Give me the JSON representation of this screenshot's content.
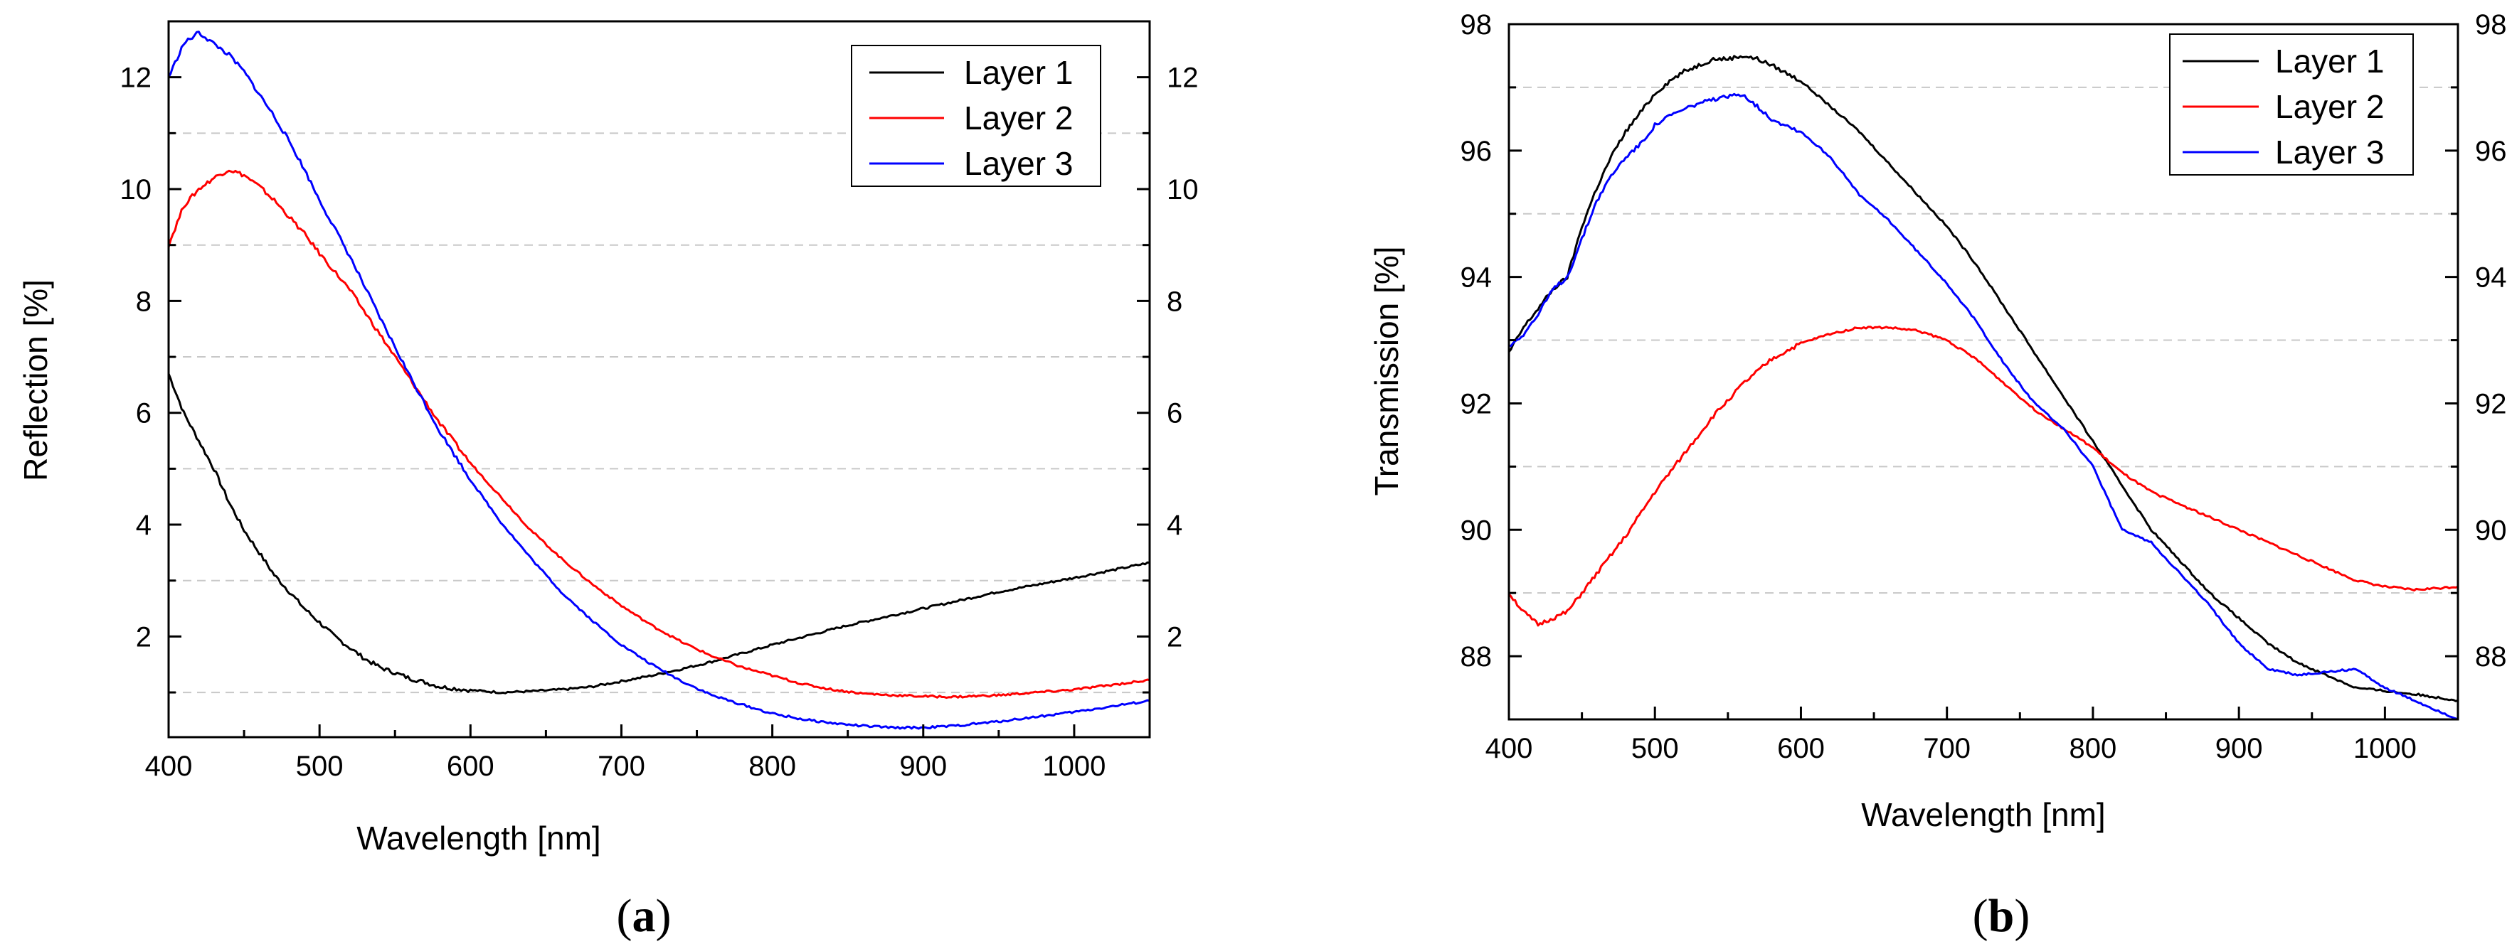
{
  "chart_data": [
    {
      "type": "line",
      "panel_label": "a",
      "xlabel": "Wavelength [nm]",
      "ylabel": "Reflection [%]",
      "xlim": [
        400,
        1050
      ],
      "ylim": [
        0.2,
        13
      ],
      "xticks": [
        400,
        500,
        600,
        700,
        800,
        900,
        1000
      ],
      "yticks": [
        2,
        4,
        6,
        8,
        10,
        12
      ],
      "grid_y": [
        1,
        3,
        5,
        7,
        9,
        11
      ],
      "right_axis_mirrored": true,
      "legend_position": "top-right",
      "series": [
        {
          "name": "Layer 1",
          "color": "#000000",
          "x": [
            400,
            410,
            420,
            430,
            440,
            450,
            460,
            470,
            480,
            490,
            500,
            510,
            520,
            530,
            540,
            550,
            560,
            570,
            580,
            600,
            620,
            640,
            660,
            680,
            700,
            720,
            740,
            760,
            780,
            800,
            850,
            900,
            950,
            1000,
            1050
          ],
          "y": [
            6.7,
            6.0,
            5.5,
            5.0,
            4.4,
            3.9,
            3.5,
            3.1,
            2.8,
            2.5,
            2.25,
            2.0,
            1.8,
            1.6,
            1.45,
            1.35,
            1.25,
            1.18,
            1.1,
            1.04,
            1.0,
            1.02,
            1.05,
            1.1,
            1.2,
            1.3,
            1.42,
            1.55,
            1.7,
            1.85,
            2.2,
            2.5,
            2.8,
            3.05,
            3.32
          ]
        },
        {
          "name": "Layer 2",
          "color": "#ff0000",
          "x": [
            400,
            410,
            420,
            430,
            440,
            450,
            460,
            470,
            480,
            490,
            500,
            520,
            540,
            560,
            580,
            600,
            620,
            640,
            660,
            680,
            700,
            720,
            740,
            760,
            780,
            800,
            820,
            840,
            860,
            880,
            900,
            920,
            950,
            1000,
            1050
          ],
          "y": [
            9.0,
            9.7,
            10.0,
            10.2,
            10.35,
            10.25,
            10.05,
            9.8,
            9.5,
            9.2,
            8.85,
            8.2,
            7.4,
            6.6,
            5.8,
            5.1,
            4.5,
            3.9,
            3.4,
            2.95,
            2.55,
            2.2,
            1.9,
            1.65,
            1.45,
            1.3,
            1.15,
            1.05,
            0.98,
            0.95,
            0.93,
            0.92,
            0.95,
            1.05,
            1.22
          ]
        },
        {
          "name": "Layer 3",
          "color": "#0000ff",
          "x": [
            400,
            410,
            420,
            430,
            440,
            450,
            460,
            470,
            480,
            490,
            500,
            520,
            540,
            560,
            580,
            600,
            620,
            640,
            660,
            680,
            700,
            720,
            740,
            760,
            780,
            800,
            820,
            840,
            860,
            880,
            900,
            920,
            950,
            1000,
            1050
          ],
          "y": [
            12.0,
            12.6,
            12.8,
            12.6,
            12.4,
            12.1,
            11.7,
            11.3,
            10.85,
            10.35,
            9.8,
            8.8,
            7.7,
            6.65,
            5.65,
            4.8,
            4.05,
            3.4,
            2.8,
            2.3,
            1.85,
            1.5,
            1.2,
            0.95,
            0.78,
            0.62,
            0.52,
            0.45,
            0.4,
            0.37,
            0.37,
            0.4,
            0.48,
            0.65,
            0.85
          ]
        }
      ]
    },
    {
      "type": "line",
      "panel_label": "b",
      "xlabel": "Wavelength [nm]",
      "ylabel": "Transmission [%]",
      "xlim": [
        400,
        1050
      ],
      "ylim": [
        87,
        98
      ],
      "xticks": [
        400,
        500,
        600,
        700,
        800,
        900,
        1000
      ],
      "yticks": [
        88,
        90,
        92,
        94,
        96,
        98
      ],
      "grid_y": [
        89,
        91,
        93,
        95,
        97
      ],
      "right_axis_mirrored": true,
      "legend_position": "top-right",
      "series": [
        {
          "name": "Layer 1",
          "color": "#000000",
          "x": [
            400,
            410,
            420,
            430,
            440,
            450,
            460,
            470,
            480,
            490,
            500,
            510,
            520,
            530,
            540,
            550,
            560,
            570,
            580,
            600,
            620,
            640,
            660,
            680,
            700,
            720,
            740,
            760,
            780,
            800,
            820,
            840,
            860,
            880,
            900,
            920,
            940,
            960,
            980,
            1000,
            1020,
            1050
          ],
          "y": [
            92.8,
            93.2,
            93.5,
            93.8,
            94.0,
            94.8,
            95.4,
            95.9,
            96.3,
            96.6,
            96.9,
            97.1,
            97.25,
            97.35,
            97.45,
            97.45,
            97.5,
            97.45,
            97.35,
            97.1,
            96.7,
            96.3,
            95.8,
            95.3,
            94.8,
            94.2,
            93.5,
            92.8,
            92.1,
            91.4,
            90.7,
            90.0,
            89.5,
            89.0,
            88.6,
            88.2,
            87.9,
            87.7,
            87.5,
            87.45,
            87.4,
            87.3
          ]
        },
        {
          "name": "Layer 2",
          "color": "#ff0000",
          "x": [
            400,
            410,
            420,
            430,
            440,
            450,
            460,
            480,
            500,
            520,
            540,
            560,
            580,
            600,
            620,
            640,
            660,
            680,
            700,
            720,
            740,
            760,
            780,
            800,
            820,
            840,
            860,
            880,
            900,
            920,
            940,
            960,
            980,
            1000,
            1020,
            1050
          ],
          "y": [
            89.0,
            88.7,
            88.5,
            88.6,
            88.7,
            89.0,
            89.3,
            89.9,
            90.6,
            91.2,
            91.8,
            92.3,
            92.7,
            92.95,
            93.1,
            93.2,
            93.2,
            93.15,
            93.0,
            92.7,
            92.3,
            91.9,
            91.6,
            91.3,
            90.9,
            90.6,
            90.4,
            90.2,
            90.0,
            89.8,
            89.6,
            89.4,
            89.2,
            89.1,
            89.05,
            89.1
          ]
        },
        {
          "name": "Layer 3",
          "color": "#0000ff",
          "x": [
            400,
            410,
            420,
            430,
            440,
            450,
            460,
            470,
            480,
            490,
            500,
            510,
            520,
            530,
            540,
            550,
            560,
            570,
            580,
            600,
            620,
            640,
            660,
            680,
            700,
            720,
            740,
            760,
            780,
            800,
            820,
            840,
            860,
            880,
            900,
            920,
            940,
            960,
            980,
            1000,
            1020,
            1050
          ],
          "y": [
            92.9,
            93.1,
            93.4,
            93.8,
            94.0,
            94.6,
            95.2,
            95.6,
            95.9,
            96.1,
            96.4,
            96.55,
            96.65,
            96.75,
            96.8,
            96.85,
            96.9,
            96.7,
            96.5,
            96.3,
            95.9,
            95.3,
            94.9,
            94.4,
            93.9,
            93.3,
            92.6,
            92.0,
            91.6,
            91.0,
            90.0,
            89.8,
            89.3,
            88.8,
            88.2,
            87.8,
            87.7,
            87.75,
            87.8,
            87.5,
            87.3,
            87.0
          ]
        }
      ]
    }
  ]
}
